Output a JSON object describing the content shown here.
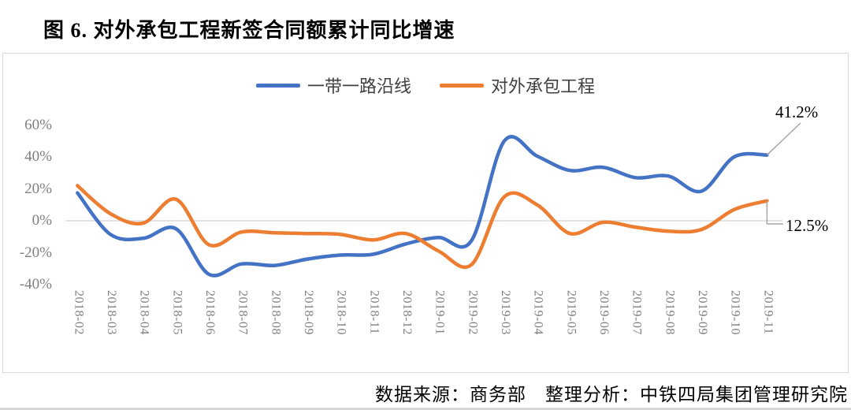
{
  "title": "图 6. 对外承包工程新签合同额累计同比增速",
  "source_note": "数据来源：商务部　整理分析：中铁四局集团管理研究院",
  "colors": {
    "belt_road_line": "#4472C4",
    "foreign_contract_line": "#ED7D31",
    "gridline": "#d9d9d9",
    "axis_text": "#7f7f7f",
    "leader_line": "#a6a6a6"
  },
  "chart_data": {
    "type": "line",
    "title": "图 6. 对外承包工程新签合同额累计同比增速",
    "xlabel": "",
    "ylabel": "",
    "ylim": [
      -40,
      60
    ],
    "grid": "horizontal line at 0% only",
    "legend_position": "top-center",
    "smoothed": true,
    "y_ticks": [
      {
        "value": 60,
        "label": "60%"
      },
      {
        "value": 40,
        "label": "40%"
      },
      {
        "value": 20,
        "label": "20%"
      },
      {
        "value": 0,
        "label": "0%"
      },
      {
        "value": -20,
        "label": "-20%"
      },
      {
        "value": -40,
        "label": "-40%"
      }
    ],
    "categories": [
      "2018-02",
      "2018-03",
      "2018-04",
      "2018-05",
      "2018-06",
      "2018-07",
      "2018-08",
      "2018-09",
      "2018-10",
      "2018-11",
      "2018-12",
      "2019-01",
      "2019-02",
      "2019-03",
      "2019-04",
      "2019-05",
      "2019-06",
      "2019-07",
      "2019-08",
      "2019-09",
      "2019-10",
      "2019-11"
    ],
    "series": [
      {
        "name": "一带一路沿线",
        "color": "#4472C4",
        "values": [
          17.5,
          -8.5,
          -11,
          -5,
          -33.5,
          -27,
          -28,
          -24,
          -21.5,
          -21,
          -14.5,
          -10.5,
          -12.5,
          50,
          40.5,
          31.5,
          33.5,
          27,
          28,
          18.5,
          40,
          41.2
        ]
      },
      {
        "name": "对外承包工程",
        "color": "#ED7D31",
        "values": [
          22,
          4.5,
          -1.5,
          13.5,
          -15,
          -7,
          -7.5,
          -8,
          -8.5,
          -12,
          -8,
          -19,
          -27.5,
          15,
          10,
          -8,
          -1,
          -4,
          -6.5,
          -5.5,
          7,
          12.5
        ]
      }
    ],
    "annotations": [
      {
        "series": "一带一路沿线",
        "at_category": "2019-11",
        "label": "41.2%"
      },
      {
        "series": "对外承包工程",
        "at_category": "2019-11",
        "label": "12.5%"
      }
    ]
  }
}
